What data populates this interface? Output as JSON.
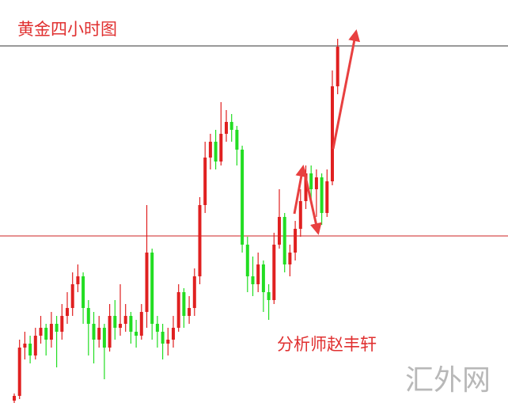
{
  "chart_data": {
    "type": "candlestick",
    "title": "黄金四小时图",
    "annotation": "分析师赵丰轩",
    "watermark": "汇外网",
    "ylim": [
      0,
      509
    ],
    "up_color": "#e02020",
    "down_color": "#22dd22",
    "hlines": [
      {
        "value": 451,
        "color": "#333333"
      },
      {
        "value": 211,
        "color": "#cc2222"
      }
    ],
    "open": [
      3,
      9,
      70,
      75,
      60,
      85,
      95,
      80,
      100,
      90,
      110,
      120,
      150,
      160,
      120,
      100,
      80,
      95,
      70,
      110,
      95,
      100,
      110,
      90,
      85,
      115,
      190,
      100,
      90,
      75,
      80,
      95,
      140,
      110,
      120,
      160,
      250,
      310,
      330,
      305,
      340,
      355,
      345,
      320,
      200,
      160,
      150,
      175,
      140,
      130,
      200,
      235,
      175,
      190,
      220,
      255,
      290,
      270,
      285,
      240,
      280,
      400
    ],
    "close": [
      9,
      70,
      75,
      60,
      85,
      95,
      80,
      100,
      90,
      110,
      120,
      150,
      160,
      120,
      100,
      80,
      95,
      70,
      110,
      95,
      100,
      110,
      90,
      85,
      115,
      190,
      100,
      90,
      75,
      80,
      95,
      140,
      110,
      120,
      160,
      250,
      310,
      330,
      305,
      340,
      355,
      345,
      320,
      200,
      160,
      150,
      175,
      140,
      130,
      200,
      235,
      175,
      190,
      220,
      255,
      290,
      270,
      285,
      240,
      280,
      400,
      450
    ],
    "high": [
      12,
      80,
      90,
      85,
      95,
      110,
      100,
      115,
      110,
      125,
      140,
      165,
      175,
      165,
      130,
      115,
      110,
      100,
      125,
      130,
      150,
      125,
      115,
      105,
      125,
      250,
      195,
      110,
      100,
      95,
      110,
      150,
      145,
      135,
      170,
      260,
      330,
      340,
      345,
      380,
      370,
      365,
      350,
      325,
      210,
      185,
      190,
      180,
      150,
      215,
      270,
      240,
      200,
      230,
      270,
      300,
      300,
      295,
      290,
      295,
      420,
      460
    ],
    "low": [
      0,
      5,
      55,
      50,
      55,
      75,
      60,
      70,
      45,
      80,
      100,
      110,
      140,
      100,
      60,
      50,
      70,
      30,
      65,
      80,
      85,
      90,
      75,
      70,
      80,
      95,
      80,
      70,
      55,
      60,
      70,
      90,
      95,
      100,
      110,
      150,
      240,
      295,
      295,
      300,
      330,
      330,
      300,
      190,
      140,
      135,
      140,
      115,
      105,
      125,
      195,
      165,
      160,
      180,
      210,
      245,
      250,
      235,
      225,
      235,
      275,
      390
    ]
  }
}
